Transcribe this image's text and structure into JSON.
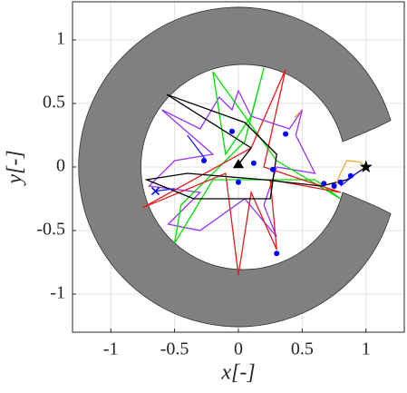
{
  "chart_data": {
    "type": "line",
    "x_label": "x[-]",
    "y_label": "y[-]",
    "xlim": [
      -1.3,
      1.3
    ],
    "ylim": [
      -1.3,
      1.3
    ],
    "xticks": [
      -1,
      -0.5,
      0,
      0.5,
      1
    ],
    "yticks": [
      -1,
      -0.5,
      0,
      0.5,
      1
    ],
    "grid": true,
    "series": [
      {
        "type": "line",
        "color": "#9b30ff",
        "x": [
          -0.6,
          -0.3,
          -0.15,
          -0.05,
          0,
          0.1,
          0.4,
          0.5,
          0.45,
          0.6,
          0.3,
          0.2,
          0.3,
          0.05,
          -0.3,
          -0.55,
          -0.3,
          -0.7,
          -0.5,
          -0.2,
          -0.6
        ],
        "y": [
          0.45,
          0.3,
          0.55,
          0.45,
          0.6,
          0.4,
          0.3,
          0.45,
          0.25,
          -0.05,
          0,
          -0.3,
          -0.55,
          -0.25,
          -0.5,
          -0.45,
          -0.2,
          -0.15,
          0.05,
          0.1,
          0.45
        ]
      },
      {
        "type": "line",
        "color": "#00e000",
        "x": [
          -0.2,
          -0.1,
          0.1,
          0.2,
          0.05,
          -0.45,
          -0.5,
          -0.2,
          0.6,
          0.8,
          0.3,
          -0.2
        ],
        "y": [
          0.75,
          0.1,
          0.4,
          0.78,
          0.2,
          -0.3,
          -0.6,
          -0.1,
          -0.1,
          -0.25,
          0.05,
          0.75
        ]
      },
      {
        "type": "line",
        "color": "#e8191a",
        "x": [
          0.37,
          0.1,
          -0.75,
          -0.1,
          0,
          0.1,
          0.3,
          0.25,
          0.8,
          0.2,
          0.37
        ],
        "y": [
          0.77,
          0.15,
          -0.32,
          -0.05,
          -0.85,
          -0.2,
          -0.65,
          -0.1,
          -0.2,
          0,
          0.77
        ]
      },
      {
        "type": "line",
        "color": "#000000",
        "x": [
          0,
          0.1,
          -0.56,
          0.05,
          0.3,
          0.25,
          -0.35,
          -0.72,
          -0.4,
          0.2,
          0.65,
          0.85,
          1
        ],
        "y": [
          0.02,
          0.15,
          0.57,
          0.35,
          0.1,
          -0.25,
          -0.25,
          -0.1,
          -0.05,
          -0.1,
          -0.15,
          -0.1,
          0
        ]
      },
      {
        "type": "line",
        "color": "#1a1aff",
        "x": [
          -0.4,
          -0.25,
          null,
          -0.65,
          -0.5,
          null,
          0.8,
          0.95
        ],
        "y": [
          0.25,
          0.05,
          null,
          -0.19,
          -0.17,
          null,
          -0.15,
          -0.03
        ]
      },
      {
        "type": "line",
        "color": "#f0a830",
        "x": [
          0.75,
          0.8,
          0.85,
          0.95,
          1,
          null,
          0.44,
          0.49
        ],
        "y": [
          -0.18,
          -0.05,
          0.05,
          0.04,
          0,
          null,
          0.39,
          0.44
        ]
      },
      {
        "type": "scatter",
        "marker": "circle",
        "color": "#0000ff",
        "x": [
          -0.05,
          -0.27,
          0,
          0.12,
          0.27,
          0.37,
          0.3,
          0.67,
          0.75,
          0.8,
          0.88
        ],
        "y": [
          0.28,
          0.05,
          -0.12,
          0.03,
          -0.02,
          0.26,
          -0.68,
          -0.13,
          -0.15,
          -0.12,
          -0.07
        ]
      },
      {
        "type": "scatter",
        "marker": "star",
        "color": "#000000",
        "x": [
          1
        ],
        "y": [
          0
        ]
      },
      {
        "type": "scatter",
        "marker": "triangle",
        "color": "#000000",
        "x": [
          0
        ],
        "y": [
          0.02
        ]
      },
      {
        "type": "scatter",
        "marker": "x",
        "color": "#0000ff",
        "x": [
          -0.65
        ],
        "y": [
          -0.19
        ]
      }
    ]
  }
}
